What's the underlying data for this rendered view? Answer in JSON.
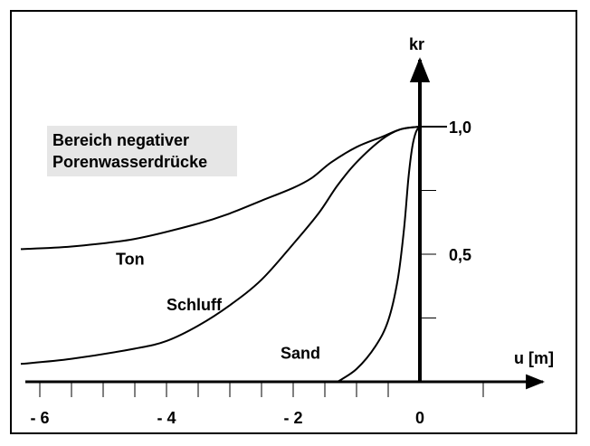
{
  "chart_data": {
    "type": "line",
    "xlabel": "u [m]",
    "ylabel": "kr",
    "xlim": [
      -6.3,
      2
    ],
    "ylim": [
      0,
      1
    ],
    "x_tick_labels": [
      {
        "value": -6,
        "label": "- 6"
      },
      {
        "value": -4,
        "label": "- 4"
      },
      {
        "value": -2,
        "label": "- 2"
      },
      {
        "value": 0,
        "label": "0"
      }
    ],
    "x_minor_ticks": [
      -5.5,
      -5.0,
      -4.5,
      -3.5,
      -3.0,
      -2.5,
      -1.5,
      -1.0,
      -0.5,
      1.0
    ],
    "y_tick_labels": [
      {
        "value": 1.0,
        "label": "1,0"
      },
      {
        "value": 0.5,
        "label": "0,5"
      }
    ],
    "y_minor_ticks": [
      0.25,
      0.75
    ],
    "annotation": [
      "Bereich negativer",
      "Porenwasserdrücke"
    ],
    "series": [
      {
        "name": "Ton",
        "label_at": [
          -4.8,
          0.46
        ],
        "points": [
          [
            -6.3,
            0.52
          ],
          [
            -5.5,
            0.53
          ],
          [
            -4.5,
            0.56
          ],
          [
            -3.5,
            0.62
          ],
          [
            -3.0,
            0.66
          ],
          [
            -2.5,
            0.71
          ],
          [
            -2.0,
            0.76
          ],
          [
            -1.7,
            0.8
          ],
          [
            -1.4,
            0.86
          ],
          [
            -1.0,
            0.92
          ],
          [
            -0.6,
            0.96
          ],
          [
            -0.3,
            0.99
          ],
          [
            0.0,
            1.0
          ]
        ]
      },
      {
        "name": "Schluff",
        "label_at": [
          -4.0,
          0.28
        ],
        "points": [
          [
            -6.3,
            0.07
          ],
          [
            -5.5,
            0.09
          ],
          [
            -4.5,
            0.13
          ],
          [
            -4.0,
            0.16
          ],
          [
            -3.5,
            0.22
          ],
          [
            -3.0,
            0.3
          ],
          [
            -2.5,
            0.4
          ],
          [
            -2.0,
            0.54
          ],
          [
            -1.6,
            0.66
          ],
          [
            -1.3,
            0.77
          ],
          [
            -1.0,
            0.86
          ],
          [
            -0.6,
            0.95
          ],
          [
            -0.3,
            0.99
          ],
          [
            0.0,
            1.0
          ]
        ]
      },
      {
        "name": "Sand",
        "label_at": [
          -2.2,
          0.09
        ],
        "points": [
          [
            -1.3,
            0.0
          ],
          [
            -1.0,
            0.05
          ],
          [
            -0.7,
            0.14
          ],
          [
            -0.5,
            0.24
          ],
          [
            -0.35,
            0.4
          ],
          [
            -0.25,
            0.6
          ],
          [
            -0.18,
            0.8
          ],
          [
            -0.12,
            0.92
          ],
          [
            -0.06,
            0.98
          ],
          [
            0.0,
            1.0
          ]
        ]
      }
    ]
  }
}
